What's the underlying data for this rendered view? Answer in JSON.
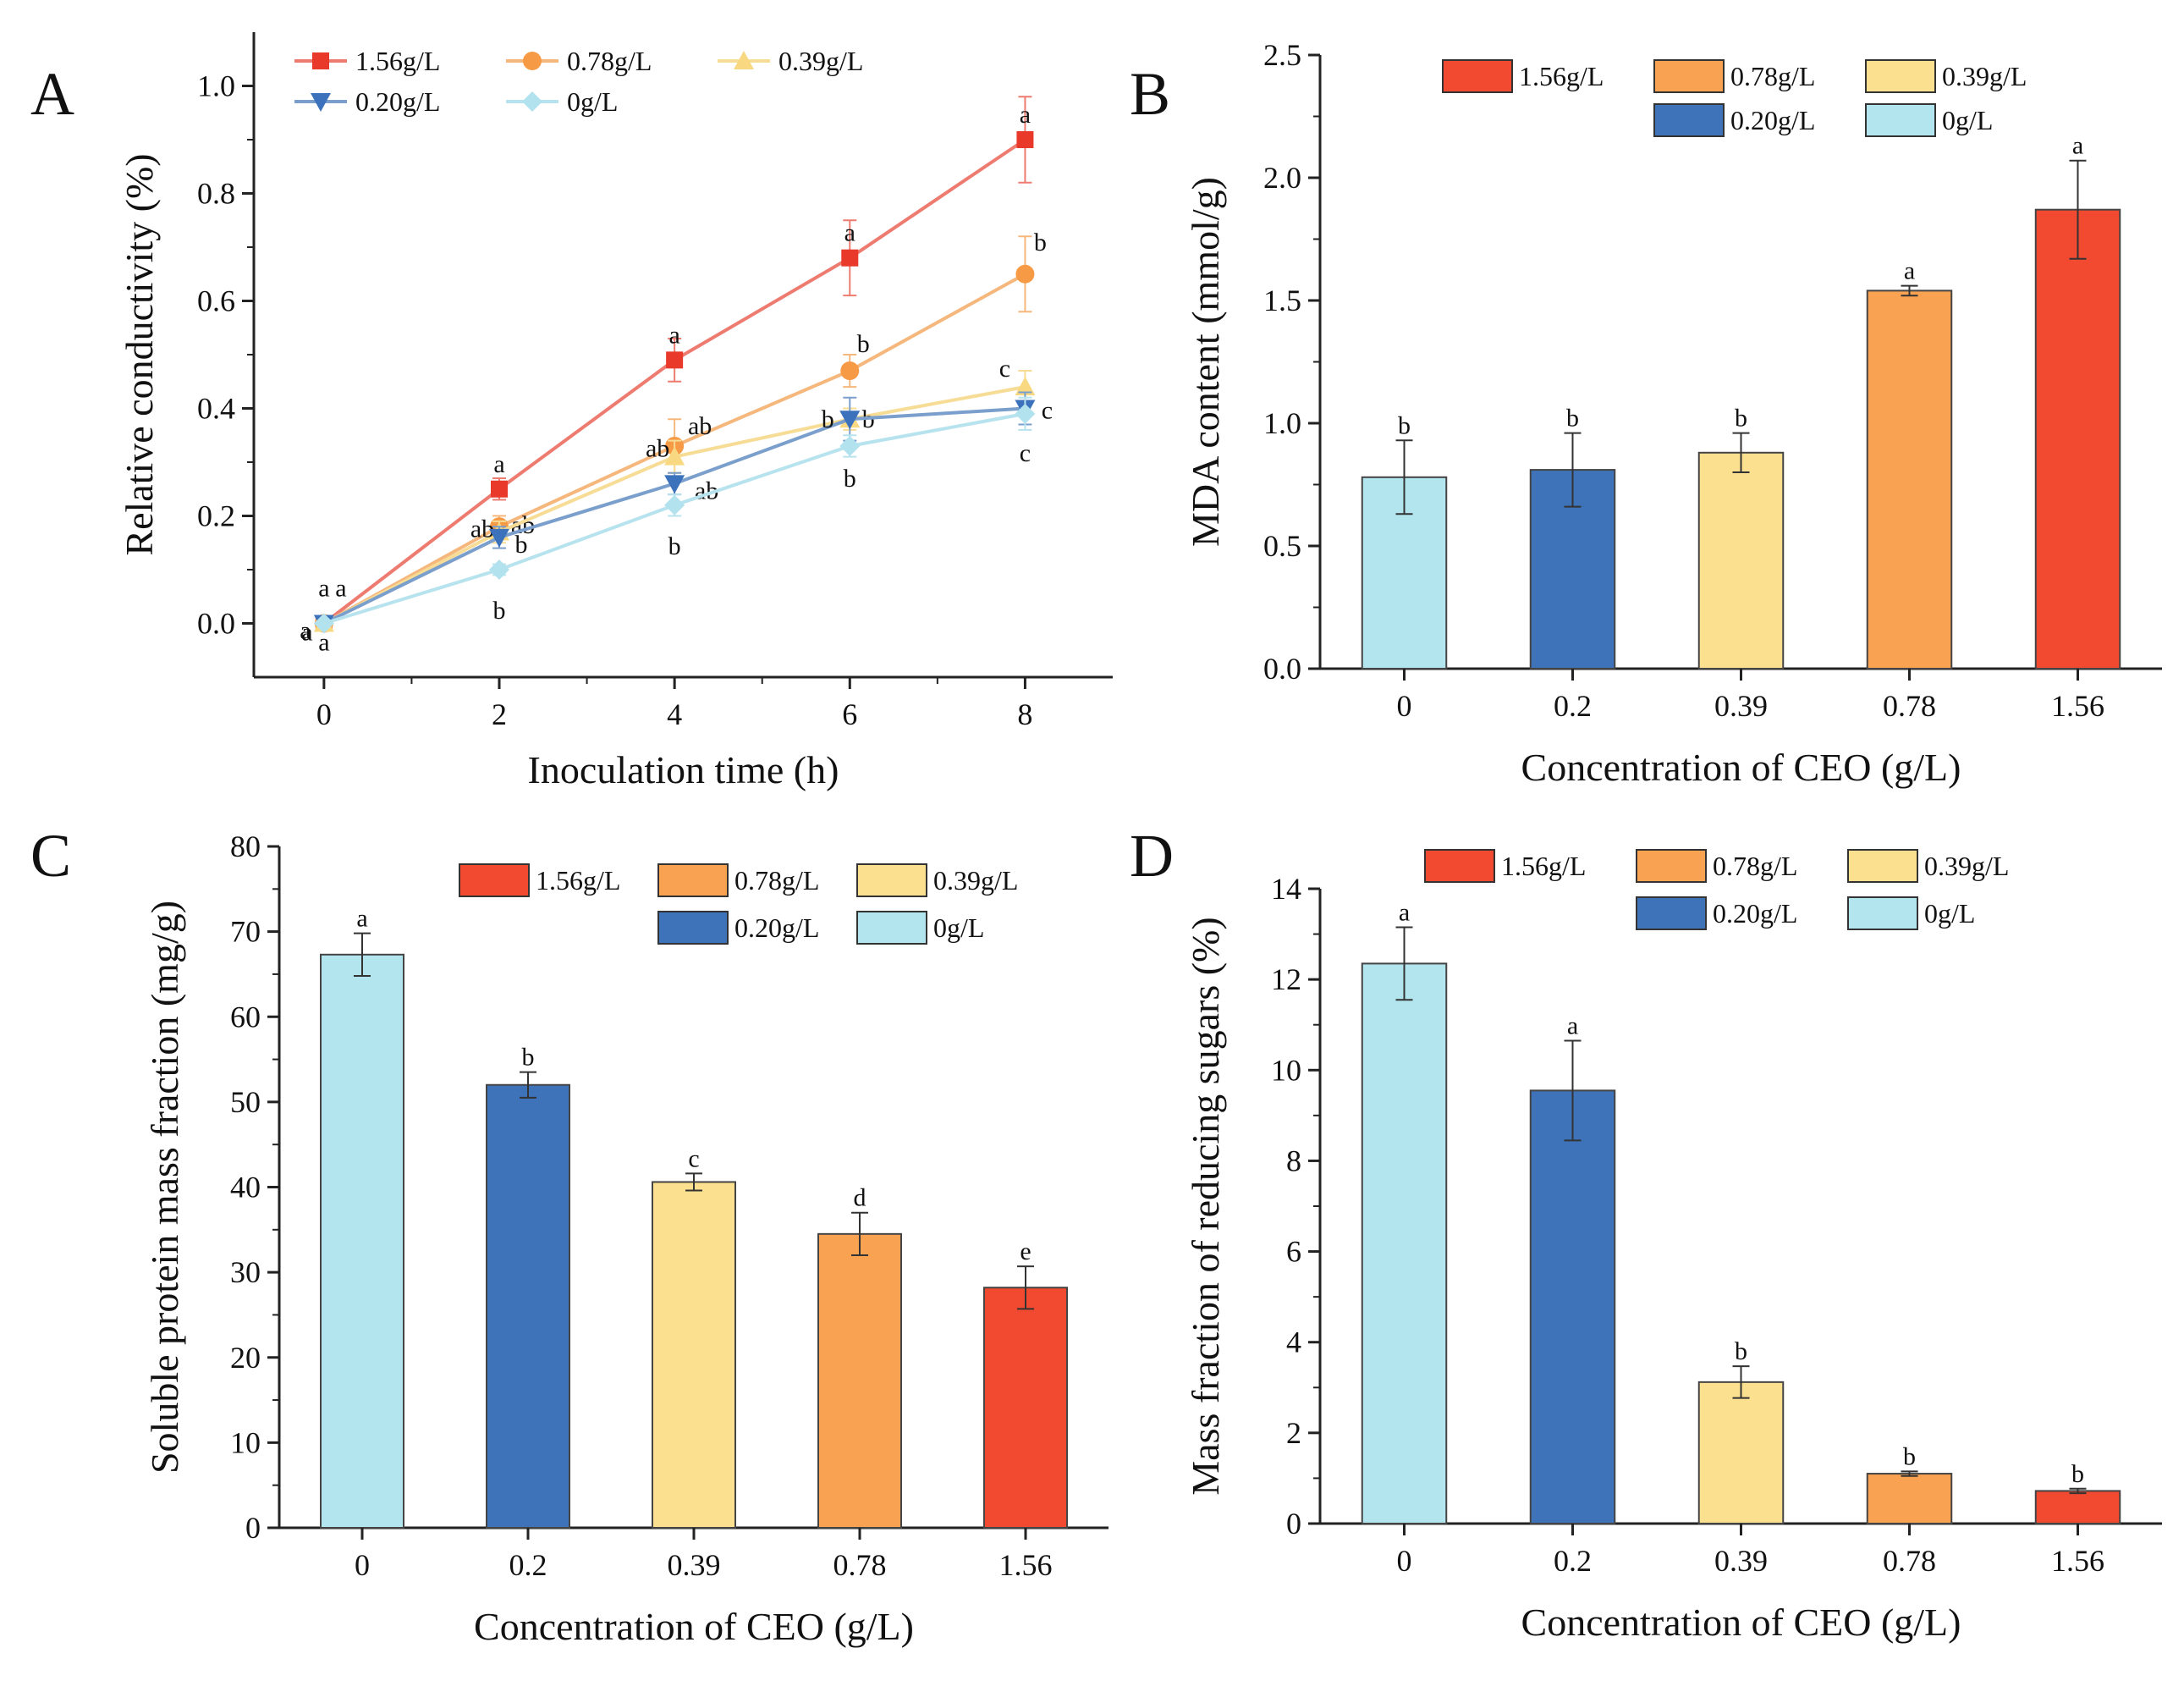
{
  "figure": {
    "colors": {
      "1.56g/L": "#f14a30",
      "0.78g/L": "#f9a352",
      "0.39g/L": "#fbe08f",
      "0.20g/L": "#3e73b9",
      "0g/L": "#b3e5ef"
    },
    "line_colors": {
      "1.56g/L": "#ee7b70",
      "0.78g/L": "#f6b77d",
      "0.39g/L": "#f7dc96",
      "0.20g/L": "#7b9fcc",
      "0g/L": "#b7e3ee"
    },
    "marker_colors": {
      "1.56g/L": "#e8392a",
      "0.78g/L": "#f79a45",
      "0.39g/L": "#f8d982",
      "0.20g/L": "#3c72bc",
      "0g/L": "#b2e2ee"
    }
  },
  "chart_data": [
    {
      "panel": "A",
      "type": "line",
      "xlabel": "Inoculation time (h)",
      "ylabel": "Relative conductivity (%)",
      "xlim": [
        -0.8,
        9
      ],
      "ylim": [
        -0.1,
        1.1
      ],
      "xticks": [
        "0",
        "2",
        "4",
        "6",
        "8"
      ],
      "yticks": [
        "0.0",
        "0.2",
        "0.4",
        "0.6",
        "0.8",
        "1.0"
      ],
      "x": [
        0,
        2,
        4,
        6,
        8
      ],
      "series": [
        {
          "name": "1.56g/L",
          "marker": "square",
          "values": [
            0.0,
            0.25,
            0.49,
            0.68,
            0.9
          ],
          "errors": [
            0.0,
            0.02,
            0.04,
            0.07,
            0.08
          ],
          "sig": [
            "a",
            "a",
            "a",
            "a",
            "a"
          ]
        },
        {
          "name": "0.78g/L",
          "marker": "circle",
          "values": [
            0.0,
            0.18,
            0.33,
            0.47,
            0.65
          ],
          "errors": [
            0.0,
            0.02,
            0.05,
            0.03,
            0.07
          ],
          "sig": [
            "a",
            "ab",
            "ab",
            "b",
            "b"
          ]
        },
        {
          "name": "0.39g/L",
          "marker": "triangle-up",
          "values": [
            0.0,
            0.17,
            0.31,
            0.38,
            0.44
          ],
          "errors": [
            0.0,
            0.02,
            0.03,
            0.02,
            0.03
          ],
          "sig": [
            "a",
            "ab",
            "ab",
            "b",
            "c"
          ]
        },
        {
          "name": "0.20g/L",
          "marker": "triangle-down",
          "values": [
            0.0,
            0.16,
            0.26,
            0.38,
            0.4
          ],
          "errors": [
            0.0,
            0.02,
            0.02,
            0.04,
            0.03
          ],
          "sig": [
            "a",
            "b",
            "ab",
            "b",
            "c"
          ]
        },
        {
          "name": "0g/L",
          "marker": "diamond",
          "values": [
            0.0,
            0.1,
            0.22,
            0.33,
            0.39
          ],
          "errors": [
            0.0,
            0.01,
            0.02,
            0.02,
            0.03
          ],
          "sig": [
            "a",
            "b",
            "b",
            "b",
            "c"
          ]
        }
      ],
      "legend": [
        "1.56g/L",
        "0.78g/L",
        "0.39g/L",
        "0.20g/L",
        "0g/L"
      ],
      "legend_position": "top-left"
    },
    {
      "panel": "B",
      "type": "bar",
      "xlabel": "Concentration of CEO (g/L)",
      "ylabel": "MDA content (mmol/g)",
      "categories": [
        "0",
        "0.2",
        "0.39",
        "0.78",
        "1.56"
      ],
      "series_names": [
        "0g/L",
        "0.20g/L",
        "0.39g/L",
        "0.78g/L",
        "1.56g/L"
      ],
      "values": [
        0.78,
        0.81,
        0.88,
        1.54,
        1.87
      ],
      "errors": [
        0.15,
        0.15,
        0.08,
        0.02,
        0.2
      ],
      "sig": [
        "b",
        "b",
        "b",
        "a",
        "a"
      ],
      "ylim": [
        0,
        2.5
      ],
      "yticks": [
        "0.0",
        "0.5",
        "1.0",
        "1.5",
        "2.0",
        "2.5"
      ],
      "legend": [
        "1.56g/L",
        "0.78g/L",
        "0.39g/L",
        "0.20g/L",
        "0g/L"
      ],
      "legend_position": "top-right"
    },
    {
      "panel": "C",
      "type": "bar",
      "xlabel": "Concentration of CEO (g/L)",
      "ylabel": "Soluble protein mass fraction (mg/g)",
      "categories": [
        "0",
        "0.2",
        "0.39",
        "0.78",
        "1.56"
      ],
      "series_names": [
        "0g/L",
        "0.20g/L",
        "0.39g/L",
        "0.78g/L",
        "1.56g/L"
      ],
      "values": [
        67.3,
        52.0,
        40.6,
        34.5,
        28.2
      ],
      "errors": [
        2.5,
        1.5,
        1.0,
        2.5,
        2.5
      ],
      "sig": [
        "a",
        "b",
        "c",
        "d",
        "e"
      ],
      "ylim": [
        0,
        80
      ],
      "yticks": [
        "0",
        "10",
        "20",
        "30",
        "40",
        "50",
        "60",
        "70",
        "80"
      ],
      "legend": [
        "1.56g/L",
        "0.78g/L",
        "0.39g/L",
        "0.20g/L",
        "0g/L"
      ],
      "legend_position": "top-right"
    },
    {
      "panel": "D",
      "type": "bar",
      "xlabel": "Concentration of CEO (g/L)",
      "ylabel": "Mass fraction of reducing sugars (%)",
      "categories": [
        "0",
        "0.2",
        "0.39",
        "0.78",
        "1.56"
      ],
      "series_names": [
        "0g/L",
        "0.20g/L",
        "0.39g/L",
        "0.78g/L",
        "1.56g/L"
      ],
      "values": [
        12.35,
        9.55,
        3.12,
        1.1,
        0.72
      ],
      "errors": [
        0.8,
        1.1,
        0.35,
        0.05,
        0.05
      ],
      "sig": [
        "a",
        "a",
        "b",
        "b",
        "b"
      ],
      "ylim": [
        0,
        14
      ],
      "yticks": [
        "0",
        "2",
        "4",
        "6",
        "8",
        "10",
        "12",
        "14"
      ],
      "legend": [
        "1.56g/L",
        "0.78g/L",
        "0.39g/L",
        "0.20g/L",
        "0g/L"
      ],
      "legend_position": "top-right"
    }
  ]
}
